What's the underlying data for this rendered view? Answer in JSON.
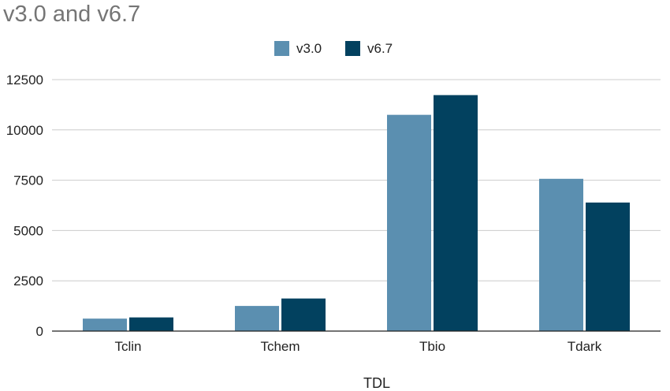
{
  "chart_data": {
    "type": "bar",
    "title": "v3.0 and v6.7",
    "xlabel": "TDL",
    "ylabel": "",
    "categories": [
      "Tclin",
      "Tchem",
      "Tbio",
      "Tdark"
    ],
    "series": [
      {
        "name": "v3.0",
        "color": "#5b8fb0",
        "values": [
          620,
          1250,
          10750,
          7570
        ]
      },
      {
        "name": "v6.7",
        "color": "#02415f",
        "values": [
          680,
          1620,
          11730,
          6390
        ]
      }
    ],
    "ylim": [
      0,
      12500
    ],
    "yticks": [
      0,
      2500,
      5000,
      7500,
      10000,
      12500
    ],
    "grid": true,
    "legend_position": "top-center"
  }
}
